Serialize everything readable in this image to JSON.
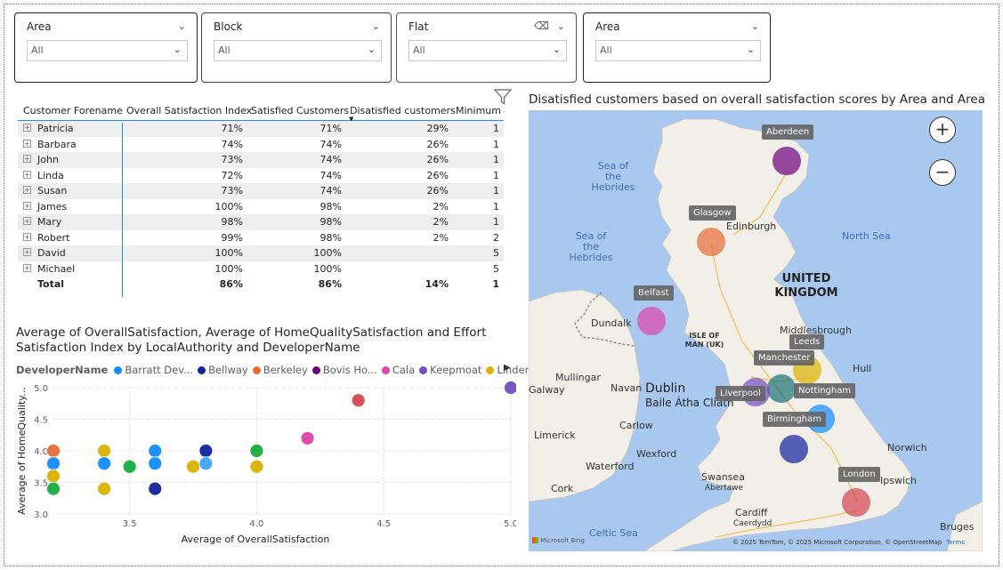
{
  "slicers": [
    {
      "title": "Area",
      "value": "All"
    },
    {
      "title": "Block",
      "value": "All"
    },
    {
      "title": "Flat",
      "value": "All"
    },
    {
      "title": "Area",
      "value": "All"
    }
  ],
  "table": {
    "headers": [
      "Customer Forename",
      "Overall Satisfaction Index",
      "Satisfied Customers",
      "Disatisfied customers",
      "Minimum"
    ],
    "rows": [
      {
        "name": "Patricia",
        "osi": "71%",
        "sat": "71%",
        "dis": "29%",
        "min": "1"
      },
      {
        "name": "Barbara",
        "osi": "74%",
        "sat": "74%",
        "dis": "26%",
        "min": "1"
      },
      {
        "name": "John",
        "osi": "73%",
        "sat": "74%",
        "dis": "26%",
        "min": "1"
      },
      {
        "name": "Linda",
        "osi": "72%",
        "sat": "74%",
        "dis": "26%",
        "min": "1"
      },
      {
        "name": "Susan",
        "osi": "73%",
        "sat": "74%",
        "dis": "26%",
        "min": "1"
      },
      {
        "name": "James",
        "osi": "100%",
        "sat": "98%",
        "dis": "2%",
        "min": "1"
      },
      {
        "name": "Mary",
        "osi": "98%",
        "sat": "98%",
        "dis": "2%",
        "min": "1"
      },
      {
        "name": "Robert",
        "osi": "99%",
        "sat": "98%",
        "dis": "2%",
        "min": "2"
      },
      {
        "name": "David",
        "osi": "100%",
        "sat": "100%",
        "dis": "",
        "min": "5"
      },
      {
        "name": "Michael",
        "osi": "100%",
        "sat": "100%",
        "dis": "",
        "min": "5"
      }
    ],
    "total": {
      "name": "Total",
      "osi": "86%",
      "sat": "86%",
      "dis": "14%",
      "min": "1"
    }
  },
  "scatter": {
    "title": "Average of OverallSatisfaction, Average of HomeQualitySatisfaction and Effort Satisfaction Index by LocalAuthority and DeveloperName",
    "legend_title": "DeveloperName",
    "legend": [
      {
        "label": "Barratt Dev...",
        "color": "#118DFF"
      },
      {
        "label": "Bellway",
        "color": "#12239E"
      },
      {
        "label": "Berkeley",
        "color": "#E66C37"
      },
      {
        "label": "Bovis Ho...",
        "color": "#6B007B"
      },
      {
        "label": "Cala",
        "color": "#E044A7"
      },
      {
        "label": "Keepmoat",
        "color": "#744EC2"
      },
      {
        "label": "Linden ...",
        "color": "#D9B300"
      }
    ]
  },
  "chart_data": {
    "type": "scatter",
    "xlabel": "Average of OverallSatisfaction",
    "ylabel": "Average of HomeQuality...",
    "xlim": [
      3.2,
      5.0
    ],
    "ylim": [
      3.0,
      5.0
    ],
    "xticks": [
      "3.5",
      "4.0",
      "4.5",
      "5.0"
    ],
    "yticks": [
      "3.0",
      "3.5",
      "4.0",
      "4.5",
      "5.0"
    ],
    "grid": true,
    "points": [
      {
        "x": 3.2,
        "y": 4.0,
        "color": "#E66C37"
      },
      {
        "x": 3.2,
        "y": 3.8,
        "color": "#118DFF"
      },
      {
        "x": 3.2,
        "y": 3.6,
        "color": "#D9B300"
      },
      {
        "x": 3.2,
        "y": 3.4,
        "color": "#1AAB40"
      },
      {
        "x": 3.4,
        "y": 4.0,
        "color": "#D9B300"
      },
      {
        "x": 3.4,
        "y": 3.8,
        "color": "#118DFF"
      },
      {
        "x": 3.4,
        "y": 3.4,
        "color": "#D9B300"
      },
      {
        "x": 3.5,
        "y": 3.75,
        "color": "#1AAB40"
      },
      {
        "x": 3.6,
        "y": 4.0,
        "color": "#118DFF"
      },
      {
        "x": 3.6,
        "y": 3.8,
        "color": "#118DFF"
      },
      {
        "x": 3.6,
        "y": 3.4,
        "color": "#12239E"
      },
      {
        "x": 3.75,
        "y": 3.75,
        "color": "#D9B300"
      },
      {
        "x": 3.8,
        "y": 4.0,
        "color": "#12239E"
      },
      {
        "x": 3.8,
        "y": 3.8,
        "color": "#41A4FF"
      },
      {
        "x": 4.0,
        "y": 4.0,
        "color": "#1AAB40"
      },
      {
        "x": 4.0,
        "y": 3.75,
        "color": "#D9B300"
      },
      {
        "x": 4.2,
        "y": 4.2,
        "color": "#E044A7"
      },
      {
        "x": 4.4,
        "y": 4.8,
        "color": "#D64550"
      },
      {
        "x": 5.0,
        "y": 5.0,
        "color": "#744EC2"
      }
    ]
  },
  "map": {
    "title": "Disatisfied customers based on overall satisfaction scores by Area and Area",
    "country_label": "UNITED KINGDOM",
    "places": [
      "Sea of the Hebrides",
      "Sea of the Hebrides",
      "Edinburgh",
      "North Sea",
      "Dundalk",
      "ISLE OF MAN (UK)",
      "Middlesbrough",
      "Hull",
      "Mullingar",
      "Navan",
      "Dublin",
      "Baile Átha Cliath",
      "Galway",
      "Carlow",
      "Limerick",
      "Waterford",
      "Wexford",
      "Cork",
      "Swansea",
      "Abertawe",
      "Cardiff",
      "Caerdydd",
      "Celtic Sea",
      "Norwich",
      "Ipswich",
      "Bruges"
    ],
    "cities": [
      {
        "label": "Aberdeen",
        "color": "#6B007B"
      },
      {
        "label": "Glasgow",
        "color": "#E66C37"
      },
      {
        "label": "Belfast",
        "color": "#E044A7"
      },
      {
        "label": "Leeds",
        "color": "#D9B300"
      },
      {
        "label": "Manchester",
        "color": "#197278"
      },
      {
        "label": "Liverpool",
        "color": "#744EC2"
      },
      {
        "label": "Nottingham",
        "color": "#118DFF"
      },
      {
        "label": "Birmingham",
        "color": "#12239E"
      },
      {
        "label": "London",
        "color": "#D64550"
      }
    ],
    "attribution": "© 2025 TomTom, © 2025 Microsoft Corporation, © OpenStreetMap",
    "terms": "Terms",
    "bing": "Microsoft Bing",
    "zoom_in": "+",
    "zoom_out": "−"
  }
}
